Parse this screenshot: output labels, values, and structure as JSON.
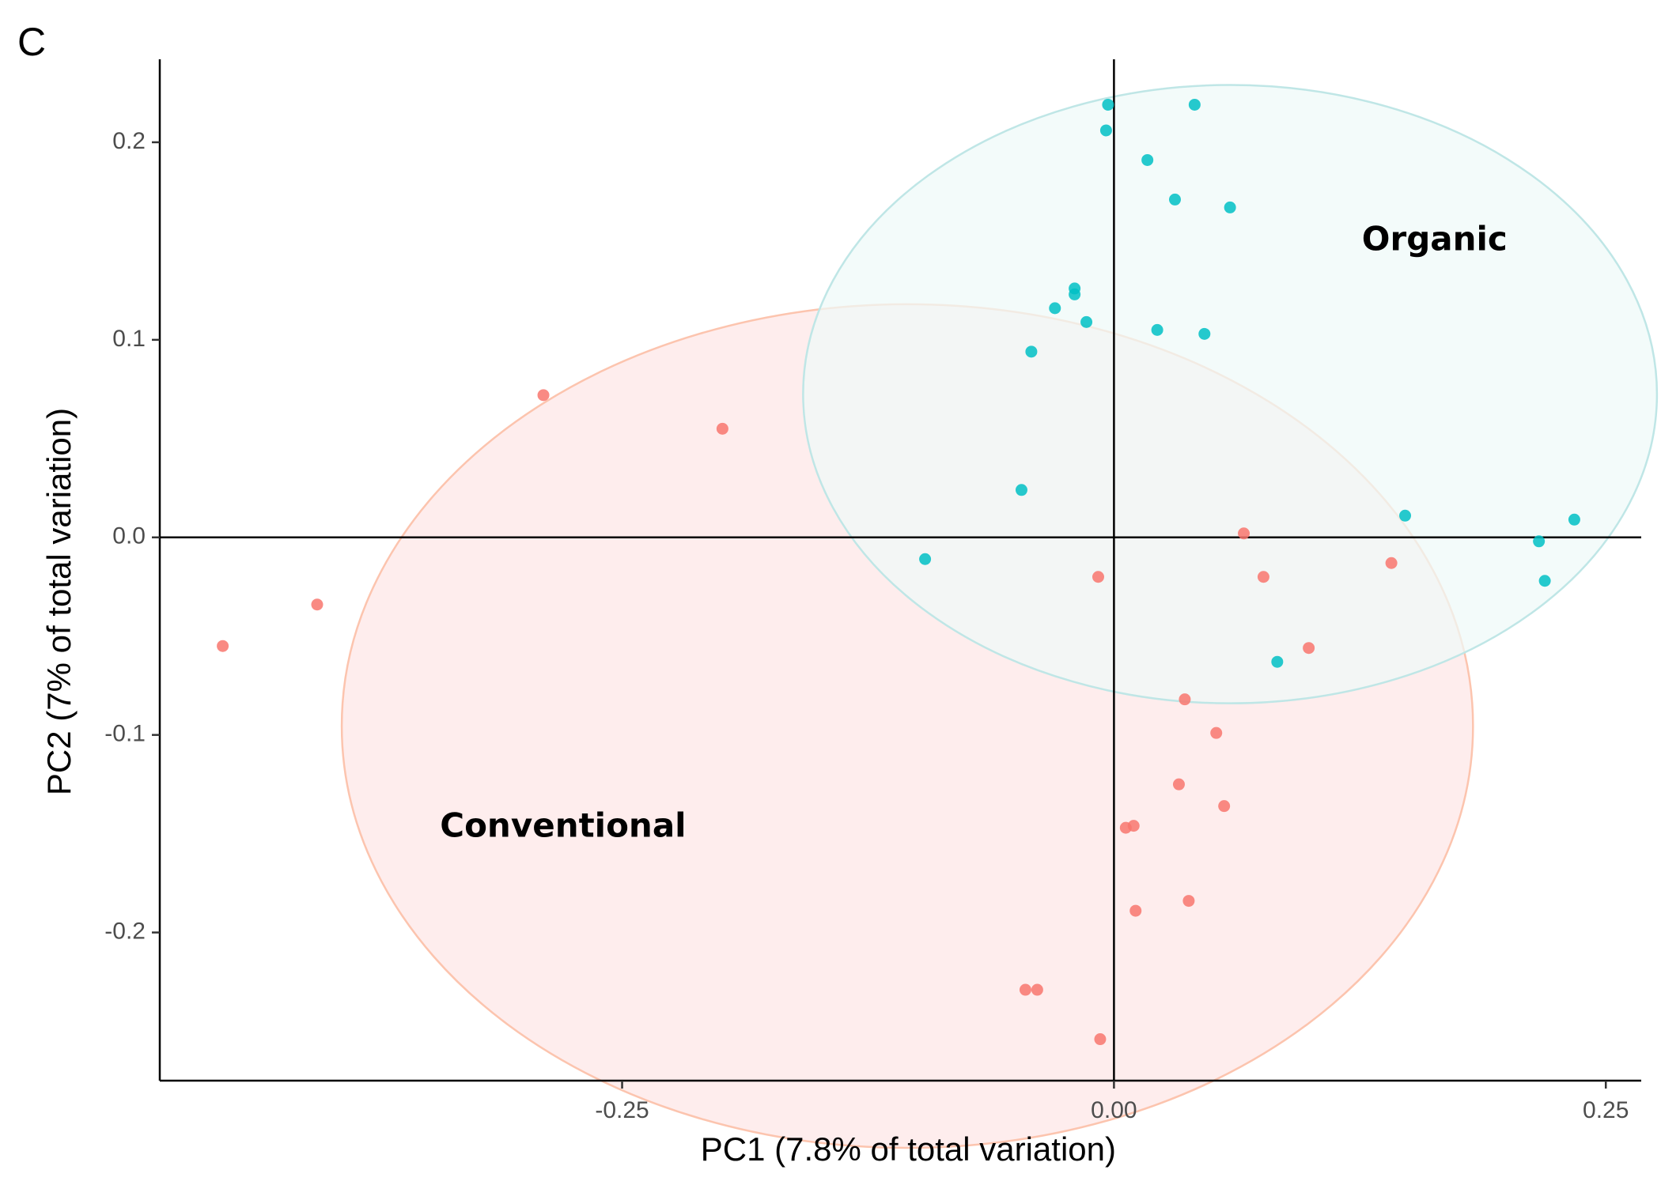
{
  "panel_label": "C",
  "chart_data": {
    "type": "scatter",
    "xlabel": "PC1 (7.8% of total variation)",
    "ylabel": "PC2 (7% of total variation)",
    "xlim": [
      -0.485,
      0.268
    ],
    "ylim": [
      -0.275,
      0.242
    ],
    "x_ticks": [
      {
        "value": -0.25,
        "label": "-0.25"
      },
      {
        "value": 0.0,
        "label": "0.00"
      },
      {
        "value": 0.25,
        "label": "0.25"
      }
    ],
    "y_ticks": [
      {
        "value": 0.2,
        "label": "0.2"
      },
      {
        "value": 0.1,
        "label": "0.1"
      },
      {
        "value": 0.0,
        "label": "0.0"
      },
      {
        "value": -0.1,
        "label": "-0.1"
      },
      {
        "value": -0.2,
        "label": "-0.2"
      }
    ],
    "grid": false,
    "reference_lines": {
      "x": 0,
      "y": 0
    },
    "series": [
      {
        "name": "Conventional",
        "color": "#F8766D",
        "fill": "#FDE6E6",
        "stroke": "#FCC4AE",
        "label_position": {
          "x": -0.28,
          "y": -0.147
        },
        "ellipse": {
          "cx": -0.105,
          "cy": -0.0955,
          "rx": 0.2875,
          "ry": 0.2135
        },
        "points": [
          {
            "x": -0.453,
            "y": -0.055
          },
          {
            "x": -0.405,
            "y": -0.034
          },
          {
            "x": -0.29,
            "y": 0.072
          },
          {
            "x": -0.199,
            "y": 0.055
          },
          {
            "x": -0.008,
            "y": -0.02
          },
          {
            "x": 0.066,
            "y": 0.002
          },
          {
            "x": 0.076,
            "y": -0.02
          },
          {
            "x": 0.141,
            "y": -0.013
          },
          {
            "x": 0.099,
            "y": -0.056
          },
          {
            "x": 0.036,
            "y": -0.082
          },
          {
            "x": 0.052,
            "y": -0.099
          },
          {
            "x": 0.033,
            "y": -0.125
          },
          {
            "x": 0.056,
            "y": -0.136
          },
          {
            "x": 0.006,
            "y": -0.147
          },
          {
            "x": 0.01,
            "y": -0.146
          },
          {
            "x": 0.038,
            "y": -0.184
          },
          {
            "x": 0.011,
            "y": -0.189
          },
          {
            "x": -0.045,
            "y": -0.229
          },
          {
            "x": -0.039,
            "y": -0.229
          },
          {
            "x": -0.007,
            "y": -0.254
          }
        ]
      },
      {
        "name": "Organic",
        "color": "#00BFC4",
        "fill": "#EEF9F8",
        "stroke": "#BFE6E6",
        "label_position": {
          "x": 0.163,
          "y": 0.15
        },
        "ellipse": {
          "cx": 0.059,
          "cy": 0.0725,
          "rx": 0.217,
          "ry": 0.1565
        },
        "points": [
          {
            "x": -0.003,
            "y": 0.219
          },
          {
            "x": 0.041,
            "y": 0.219
          },
          {
            "x": -0.004,
            "y": 0.206
          },
          {
            "x": 0.017,
            "y": 0.191
          },
          {
            "x": 0.031,
            "y": 0.171
          },
          {
            "x": 0.059,
            "y": 0.167
          },
          {
            "x": -0.02,
            "y": 0.126
          },
          {
            "x": -0.02,
            "y": 0.123
          },
          {
            "x": -0.03,
            "y": 0.116
          },
          {
            "x": -0.014,
            "y": 0.109
          },
          {
            "x": 0.022,
            "y": 0.105
          },
          {
            "x": 0.046,
            "y": 0.103
          },
          {
            "x": -0.042,
            "y": 0.094
          },
          {
            "x": -0.047,
            "y": 0.024
          },
          {
            "x": 0.148,
            "y": 0.011
          },
          {
            "x": 0.234,
            "y": 0.009
          },
          {
            "x": 0.216,
            "y": -0.002
          },
          {
            "x": 0.219,
            "y": -0.022
          },
          {
            "x": -0.096,
            "y": -0.011
          },
          {
            "x": 0.083,
            "y": -0.063
          }
        ]
      }
    ]
  }
}
